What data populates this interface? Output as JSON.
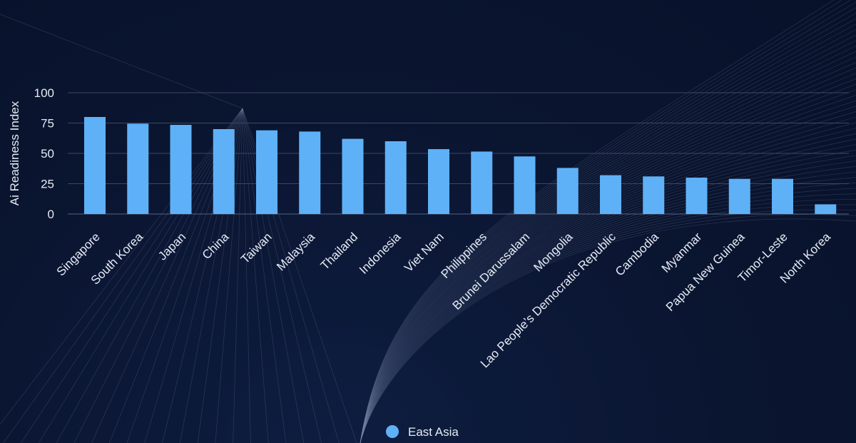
{
  "chart_data": {
    "type": "bar",
    "ylabel": "Ai Readiness Index",
    "xlabel": "",
    "ylim": [
      0,
      100
    ],
    "yticks": [
      0,
      25,
      50,
      75,
      100
    ],
    "grid": true,
    "legend_position": "bottom-center",
    "categories": [
      "Singapore",
      "South Korea",
      "Japan",
      "China",
      "Taiwan",
      "Malaysia",
      "Thailand",
      "Indonesia",
      "Viet Nam",
      "Philippines",
      "Brunei Darussalam",
      "Mongolia",
      "Lao People’s Democratic Republic",
      "Cambodia",
      "Myanmar",
      "Papua New Guinea",
      "Timor-Leste",
      "North Korea"
    ],
    "series": [
      {
        "name": "East Asia",
        "color": "#5fb1f7",
        "values": [
          80,
          74.5,
          73.5,
          70,
          69,
          68,
          62,
          60,
          53.5,
          51.5,
          47.5,
          38,
          32,
          31,
          30,
          29,
          29,
          8
        ]
      }
    ]
  }
}
